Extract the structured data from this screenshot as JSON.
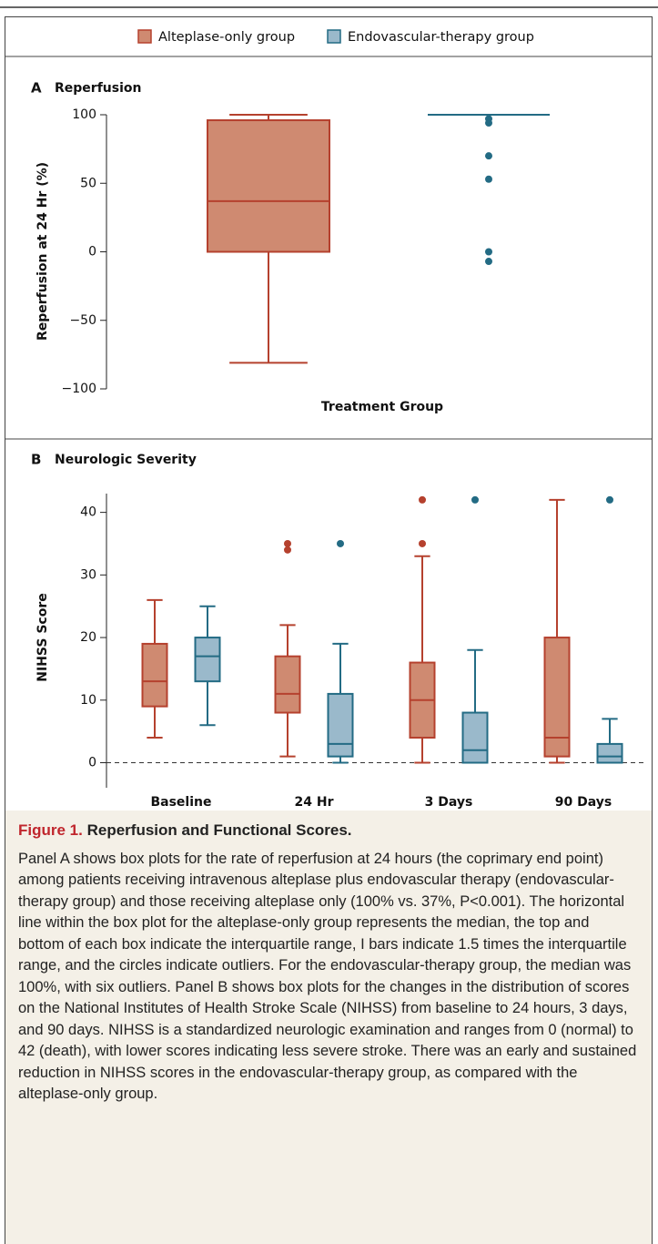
{
  "chart_data": [
    {
      "type": "box",
      "panel": "A",
      "title": "Reperfusion",
      "xlabel": "Treatment Group",
      "ylabel": "Reperfusion at 24 Hr (%)",
      "ylim": [
        -100,
        100
      ],
      "yticks": [
        {
          "value": -100,
          "label": "−100"
        },
        {
          "value": -50,
          "label": "−50"
        },
        0,
        50,
        100
      ],
      "series": [
        {
          "name": "Alteplase-only group",
          "color": "#b5412e",
          "fill": "#cf8a71",
          "boxes": [
            {
              "whislo": -81,
              "q1": 0,
              "med": 37,
              "q3": 96,
              "whishi": 100,
              "fliers": []
            }
          ]
        },
        {
          "name": "Endovascular-therapy group",
          "color": "#236b84",
          "fill": "#9ab9cb",
          "boxes": [
            {
              "whislo": 100,
              "q1": 100,
              "med": 100,
              "q3": 100,
              "whishi": 100,
              "fliers": [
                97,
                94,
                70,
                53,
                0,
                -7
              ]
            }
          ]
        }
      ]
    },
    {
      "type": "box",
      "panel": "B",
      "title": "Neurologic Severity",
      "ylabel": "NIHSS Score",
      "categories": [
        "Baseline",
        "24 Hr",
        "3 Days",
        "90 Days"
      ],
      "ylim": [
        -4,
        43
      ],
      "yticks": [
        0,
        10,
        20,
        30,
        40
      ],
      "refline": 0,
      "series": [
        {
          "color": "#b5412e",
          "fill": "#cf8a71",
          "boxes": [
            {
              "whislo": 4,
              "q1": 9,
              "med": 13,
              "q3": 19,
              "whishi": 26,
              "fliers": []
            },
            {
              "whislo": 1,
              "q1": 8,
              "med": 11,
              "q3": 17,
              "whishi": 22,
              "fliers": [
                34,
                35
              ]
            },
            {
              "whislo": 0,
              "q1": 4,
              "med": 10,
              "q3": 16,
              "whishi": 33,
              "fliers": [
                35,
                42
              ]
            },
            {
              "whislo": 0,
              "q1": 1,
              "med": 4,
              "q3": 20,
              "whishi": 42,
              "fliers": []
            }
          ]
        },
        {
          "color": "#236b84",
          "fill": "#9ab9cb",
          "boxes": [
            {
              "whislo": 6,
              "q1": 13,
              "med": 17,
              "q3": 20,
              "whishi": 25,
              "fliers": []
            },
            {
              "whislo": 0,
              "q1": 1,
              "med": 3,
              "q3": 11,
              "whishi": 19,
              "fliers": [
                35
              ]
            },
            {
              "whislo": 0,
              "q1": 0,
              "med": 2,
              "q3": 8,
              "whishi": 18,
              "fliers": [
                42
              ]
            },
            {
              "whislo": 0,
              "q1": 0,
              "med": 1,
              "q3": 3,
              "whishi": 7,
              "fliers": [
                42
              ]
            }
          ]
        }
      ]
    }
  ],
  "caption": {
    "label": "Figure 1.",
    "title": "Reperfusion and Functional Scores.",
    "text": "Panel A shows box plots for the rate of reperfusion at 24 hours (the coprimary end point) among patients receiving intravenous alteplase plus endovascular therapy (endovascular-therapy group) and those receiving alteplase only (100% vs. 37%, P<0.001). The horizontal line within the box plot for the alteplase-only group represents the median, the top and bottom of each box indicate the interquartile range, I bars indicate 1.5 times the interquartile range, and the circles indicate outliers. For the endovascular-therapy group, the median was 100%, with six outliers. Panel B shows box plots for the changes in the distribution of scores on the National Institutes of Health Stroke Scale (NIHSS) from baseline to 24 hours, 3 days, and 90 days. NIHSS is a standardized neurologic examination and ranges from 0 (normal) to 42 (death), with lower scores indicating less severe stroke. There was an early and sustained reduction in NIHSS scores in the endovascular-therapy group, as compared with the alteplase-only group."
  }
}
